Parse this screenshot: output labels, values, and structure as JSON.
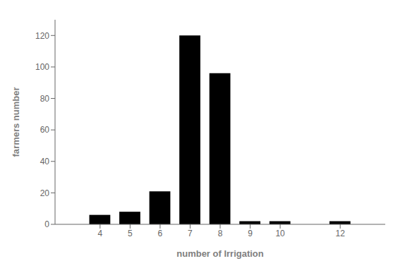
{
  "chart_data": {
    "type": "bar",
    "x": [
      4,
      5,
      6,
      7,
      8,
      9,
      10,
      12
    ],
    "values": [
      6,
      8,
      21,
      120,
      96,
      2,
      2,
      2
    ],
    "color": "#000000",
    "xlabel": "number of Irrigation",
    "ylabel": "farmers number",
    "xlim": [
      2.5,
      13.5
    ],
    "xticks": [
      4,
      5,
      6,
      7,
      8,
      9,
      10,
      12
    ],
    "ylim": [
      0,
      130
    ],
    "yticks": [
      0,
      20,
      40,
      60,
      80,
      100,
      120
    ],
    "grid": false
  }
}
